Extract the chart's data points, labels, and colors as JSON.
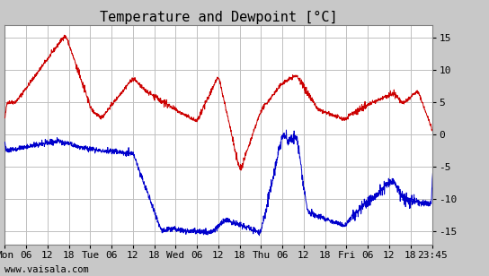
{
  "title": "Temperature and Dewpoint [°C]",
  "temp_color": "#cc0000",
  "dewp_color": "#0000cc",
  "grid_color": "#c0c0c0",
  "outer_bg": "#c8c8c8",
  "plot_bg": "#ffffff",
  "ylim": [
    -17,
    17
  ],
  "yticks": [
    -15,
    -10,
    -5,
    0,
    5,
    10,
    15
  ],
  "watermark": "www.vaisala.com",
  "title_fontsize": 11,
  "axis_fontsize": 8,
  "watermark_fontsize": 7.5,
  "xlim_hours": 120.25,
  "n_points": 1920,
  "seed": 42
}
